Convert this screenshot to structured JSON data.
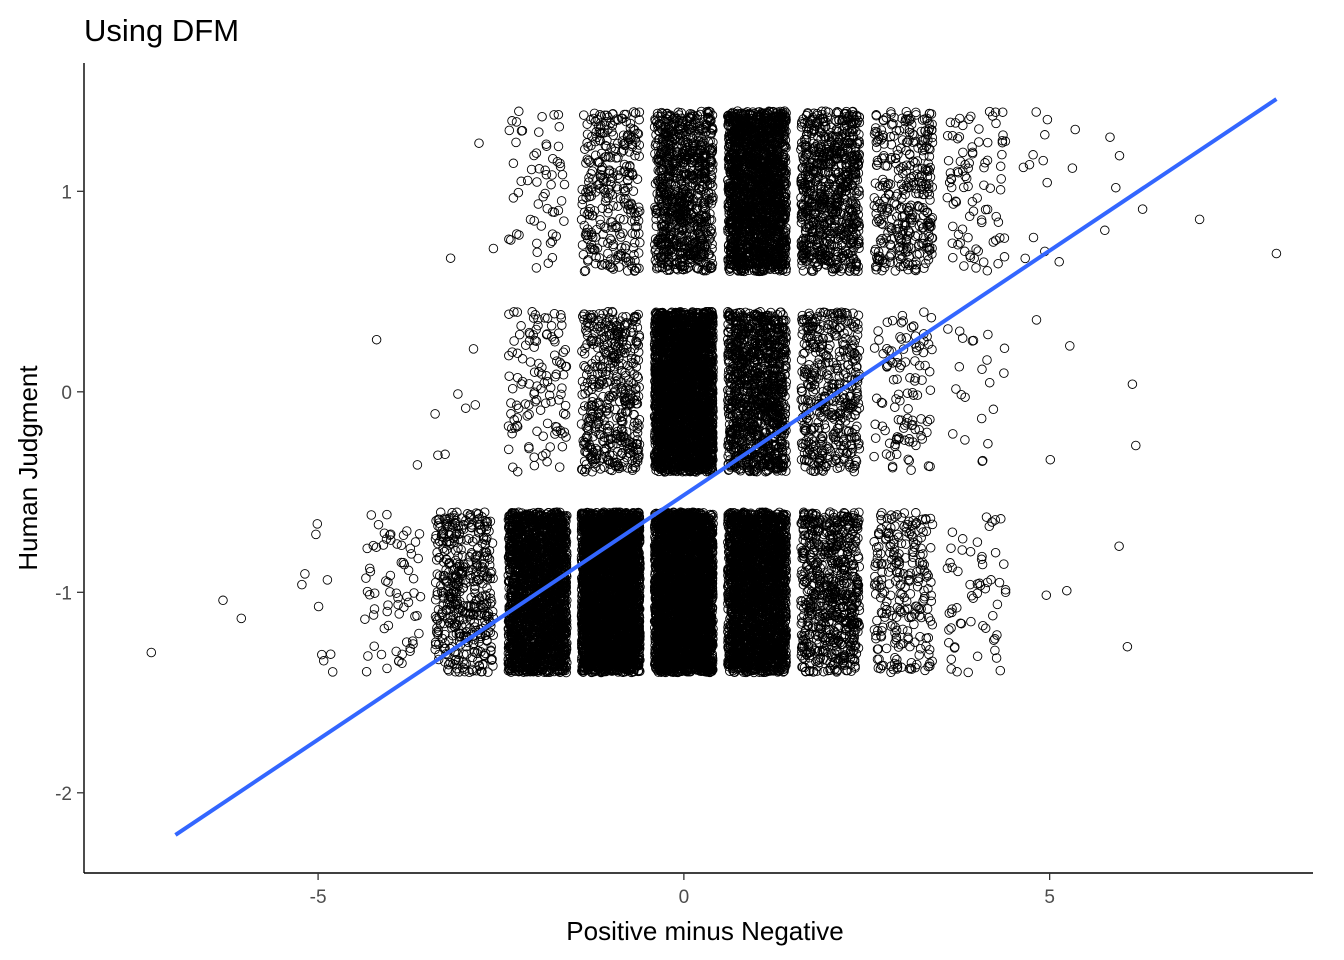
{
  "chart_data": {
    "type": "scatter",
    "title": "Using DFM",
    "xlabel": "Positive minus Negative",
    "ylabel": "Human Judgment",
    "xlim": [
      -8.2,
      8.6
    ],
    "ylim": [
      -2.4,
      1.64
    ],
    "x_ticks": [
      {
        "value": -5,
        "label": "-5"
      },
      {
        "value": 0,
        "label": "0"
      },
      {
        "value": 5,
        "label": "5"
      }
    ],
    "y_ticks": [
      {
        "value": -2,
        "label": "-2"
      },
      {
        "value": -1,
        "label": "-1"
      },
      {
        "value": 0,
        "label": "0"
      },
      {
        "value": 1,
        "label": "1"
      }
    ],
    "grid": false,
    "legend": "none",
    "jitter": {
      "x": 0.4,
      "y": 0.4
    },
    "point_style": {
      "shape": "open-circle",
      "color": "#000000"
    },
    "trend_line": {
      "type": "linear",
      "color": "#3366ff",
      "x": [
        -6.95,
        8.1
      ],
      "y": [
        -2.21,
        1.46
      ]
    },
    "clusters": [
      {
        "x": 0,
        "y": -1,
        "n": 3500
      },
      {
        "x": 0,
        "y": 0,
        "n": 3000
      },
      {
        "x": 0,
        "y": 1,
        "n": 900
      },
      {
        "x": 1,
        "y": -1,
        "n": 2500
      },
      {
        "x": 1,
        "y": 0,
        "n": 1200
      },
      {
        "x": 1,
        "y": 1,
        "n": 2000
      },
      {
        "x": -1,
        "y": -1,
        "n": 3500
      },
      {
        "x": -1,
        "y": 0,
        "n": 450
      },
      {
        "x": -1,
        "y": 1,
        "n": 300
      },
      {
        "x": -2,
        "y": -1,
        "n": 2300
      },
      {
        "x": -2,
        "y": 0,
        "n": 120
      },
      {
        "x": -2,
        "y": 1,
        "n": 60
      },
      {
        "x": 2,
        "y": -1,
        "n": 700
      },
      {
        "x": 2,
        "y": 0,
        "n": 450
      },
      {
        "x": 2,
        "y": 1,
        "n": 800
      },
      {
        "x": -3,
        "y": -1,
        "n": 450
      },
      {
        "x": -3,
        "y": 0,
        "n": 6
      },
      {
        "x": -3,
        "y": 1,
        "n": 2
      },
      {
        "x": 3,
        "y": -1,
        "n": 250
      },
      {
        "x": 3,
        "y": 0,
        "n": 110
      },
      {
        "x": 3,
        "y": 1,
        "n": 350
      },
      {
        "x": -4,
        "y": -1,
        "n": 70
      },
      {
        "x": -4,
        "y": 0,
        "n": 1
      },
      {
        "x": 4,
        "y": -1,
        "n": 60
      },
      {
        "x": 4,
        "y": 0,
        "n": 22
      },
      {
        "x": 4,
        "y": 1,
        "n": 90
      },
      {
        "x": -5,
        "y": -1,
        "n": 10
      },
      {
        "x": 5,
        "y": -1,
        "n": 2
      },
      {
        "x": 5,
        "y": 0,
        "n": 3
      },
      {
        "x": 5,
        "y": 1,
        "n": 14
      },
      {
        "x": 6,
        "y": -1,
        "n": 1
      },
      {
        "x": 6,
        "y": 0,
        "n": 2
      },
      {
        "x": 6,
        "y": 1,
        "n": 5
      }
    ],
    "points": [
      {
        "x": -7.28,
        "y": -1.3
      },
      {
        "x": -6.3,
        "y": -1.04
      },
      {
        "x": -6.05,
        "y": -1.13
      },
      {
        "x": 8.1,
        "y": 0.69
      },
      {
        "x": 7.05,
        "y": 0.86
      },
      {
        "x": 5.95,
        "y": -0.77
      },
      {
        "x": -4.2,
        "y": 0.26
      },
      {
        "x": -3.4,
        "y": -0.11
      },
      {
        "x": -2.8,
        "y": 1.24
      }
    ]
  }
}
